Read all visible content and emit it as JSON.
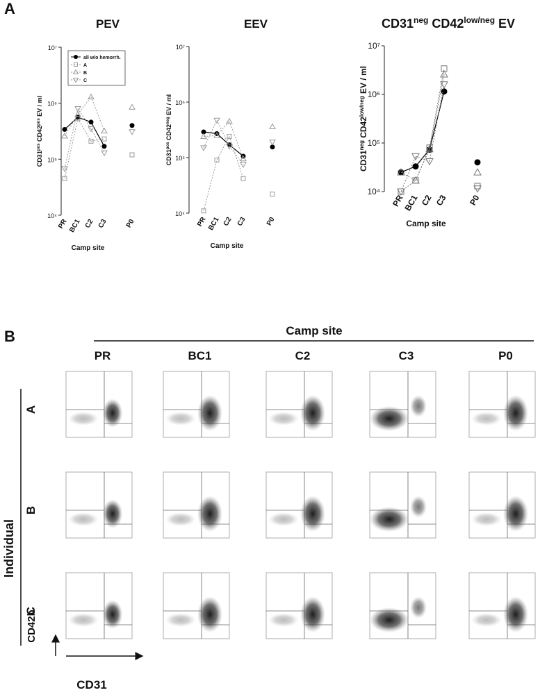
{
  "panel_a_label": "A",
  "chart_data": [
    {
      "type": "line",
      "title": [
        "PEV"
      ],
      "xlabel": "Camp site",
      "ylabel": [
        "CD31",
        "pos",
        " CD42",
        "pos",
        " EV / ml"
      ],
      "categories": [
        "PR",
        "BC1",
        "C2",
        "C3",
        "P0"
      ],
      "log_y": true,
      "legend": "upper left",
      "ylim": [
        10000,
        10000000
      ],
      "yticks": [
        {
          "value": 10000,
          "label": "10⁴"
        },
        {
          "value": 100000,
          "label": "10⁵"
        },
        {
          "value": 1000000,
          "label": "10⁶"
        },
        {
          "value": 10000000,
          "label": "10⁷"
        }
      ],
      "series": [
        {
          "name": "all w/o hemorrh.",
          "color": "#000000",
          "marker": "circle",
          "values": [
            340000,
            560000,
            460000,
            170000,
            400000
          ]
        },
        {
          "name": "A",
          "color": "#9a9a9a",
          "marker": "square",
          "values": [
            45000,
            530000,
            210000,
            230000,
            120000
          ]
        },
        {
          "name": "B",
          "color": "#9a9a9a",
          "marker": "triangle-up",
          "values": [
            260000,
            630000,
            1300000,
            320000,
            850000
          ]
        },
        {
          "name": "C",
          "color": "#9a9a9a",
          "marker": "triangle-down",
          "values": [
            68000,
            800000,
            350000,
            130000,
            310000
          ]
        }
      ]
    },
    {
      "type": "line",
      "title": [
        "EEV"
      ],
      "xlabel": "Camp site",
      "ylabel": [
        "CD31",
        "pos",
        " CD42",
        "neg",
        " EV / ml"
      ],
      "categories": [
        "PR",
        "BC1",
        "C2",
        "C3",
        "P0"
      ],
      "log_y": true,
      "ylim": [
        10000,
        10000000
      ],
      "yticks": [
        {
          "value": 10000,
          "label": "10⁴"
        },
        {
          "value": 100000,
          "label": "10⁵"
        },
        {
          "value": 1000000,
          "label": "10⁶"
        },
        {
          "value": 10000000,
          "label": "10⁷"
        }
      ],
      "series": [
        {
          "name": "all w/o hemorrh.",
          "color": "#000000",
          "marker": "circle",
          "values": [
            290000,
            270000,
            170000,
            106000,
            155000
          ]
        },
        {
          "name": "A",
          "color": "#9a9a9a",
          "marker": "square",
          "values": [
            11000,
            90000,
            240000,
            42000,
            22000
          ]
        },
        {
          "name": "B",
          "color": "#9a9a9a",
          "marker": "triangle-up",
          "values": [
            240000,
            250000,
            450000,
            95000,
            360000
          ]
        },
        {
          "name": "C",
          "color": "#9a9a9a",
          "marker": "triangle-down",
          "values": [
            150000,
            470000,
            160000,
            75000,
            190000
          ]
        }
      ]
    },
    {
      "type": "line",
      "title": [
        "CD31",
        "neg",
        " CD42",
        "low/neg",
        " EV"
      ],
      "xlabel": "Camp site",
      "ylabel": [
        "CD31",
        "neg",
        " CD42",
        "low/neg",
        " EV / ml"
      ],
      "categories": [
        "PR",
        "BC1",
        "C2",
        "C3",
        "P0"
      ],
      "log_y": true,
      "ylim": [
        10000,
        10000000
      ],
      "yticks": [
        {
          "value": 10000,
          "label": "10⁴"
        },
        {
          "value": 100000,
          "label": "10⁵"
        },
        {
          "value": 1000000,
          "label": "10⁶"
        },
        {
          "value": 10000000,
          "label": "10⁷"
        }
      ],
      "series": [
        {
          "name": "all w/o hemorrh.",
          "color": "#000000",
          "marker": "circle",
          "values": [
            25000,
            33000,
            73000,
            1150000,
            40000
          ]
        },
        {
          "name": "A",
          "color": "#777777",
          "marker": "square",
          "values": [
            10000,
            17000,
            80000,
            3400000,
            13000
          ]
        },
        {
          "name": "B",
          "color": "#777777",
          "marker": "triangle-up",
          "values": [
            25000,
            17000,
            75000,
            2600000,
            25000
          ]
        },
        {
          "name": "C",
          "color": "#777777",
          "marker": "triangle-down",
          "values": [
            10000,
            53000,
            42000,
            1600000,
            11500
          ]
        }
      ]
    }
  ],
  "panel_b": {
    "label": "B",
    "column_header": "Camp site",
    "columns": [
      "PR",
      "BC1",
      "C2",
      "C3",
      "P0"
    ],
    "row_header": "Individual",
    "rows": [
      "A",
      "B",
      "C"
    ],
    "y_axis": "CD42b",
    "x_axis": "CD31"
  }
}
